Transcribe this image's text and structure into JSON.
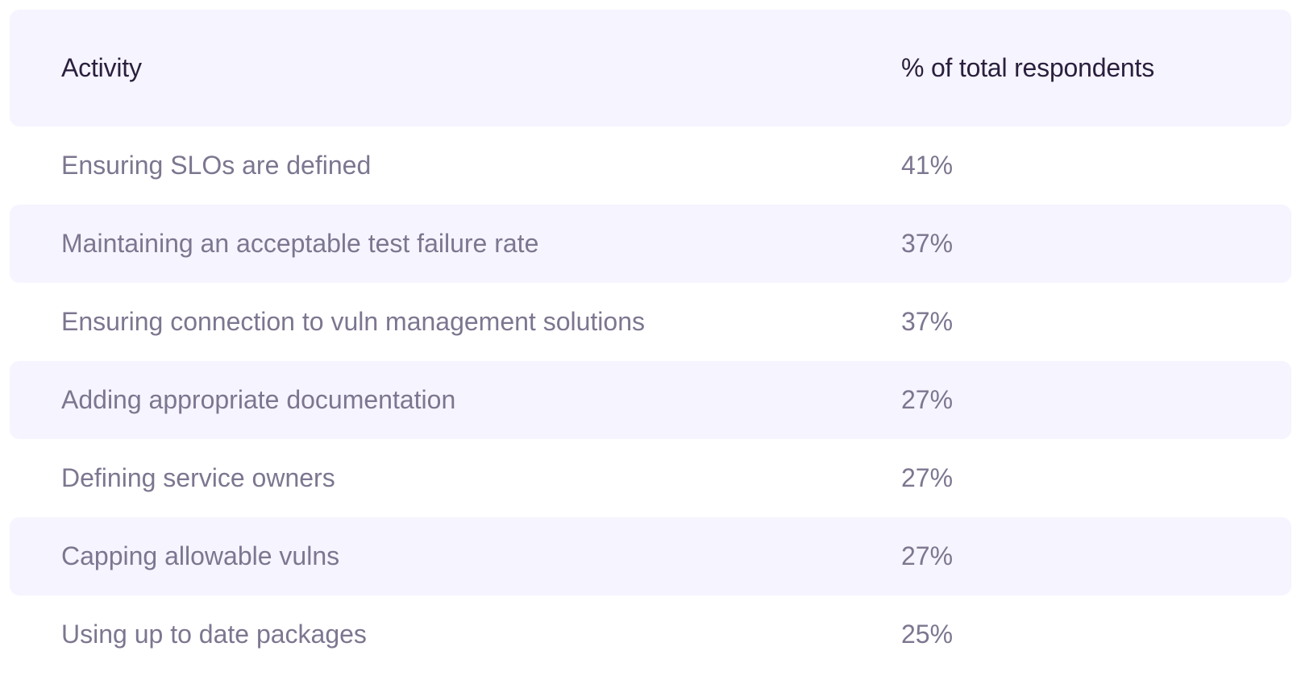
{
  "header": {
    "activity": "Activity",
    "percent": "% of total respondents"
  },
  "rows": [
    {
      "activity": "Ensuring SLOs are defined",
      "percent": "41%"
    },
    {
      "activity": "Maintaining an acceptable test failure rate",
      "percent": "37%"
    },
    {
      "activity": "Ensuring connection to vuln management solutions",
      "percent": "37%"
    },
    {
      "activity": "Adding appropriate documentation",
      "percent": "27%"
    },
    {
      "activity": "Defining service owners",
      "percent": "27%"
    },
    {
      "activity": "Capping allowable vulns",
      "percent": "27%"
    },
    {
      "activity": "Using up to date packages",
      "percent": "25%"
    }
  ],
  "colors": {
    "header_bg": "#f6f4fe",
    "header_text": "#2a1f3d",
    "body_text": "#7d7690",
    "stripe_bg": "#f6f4fe"
  }
}
